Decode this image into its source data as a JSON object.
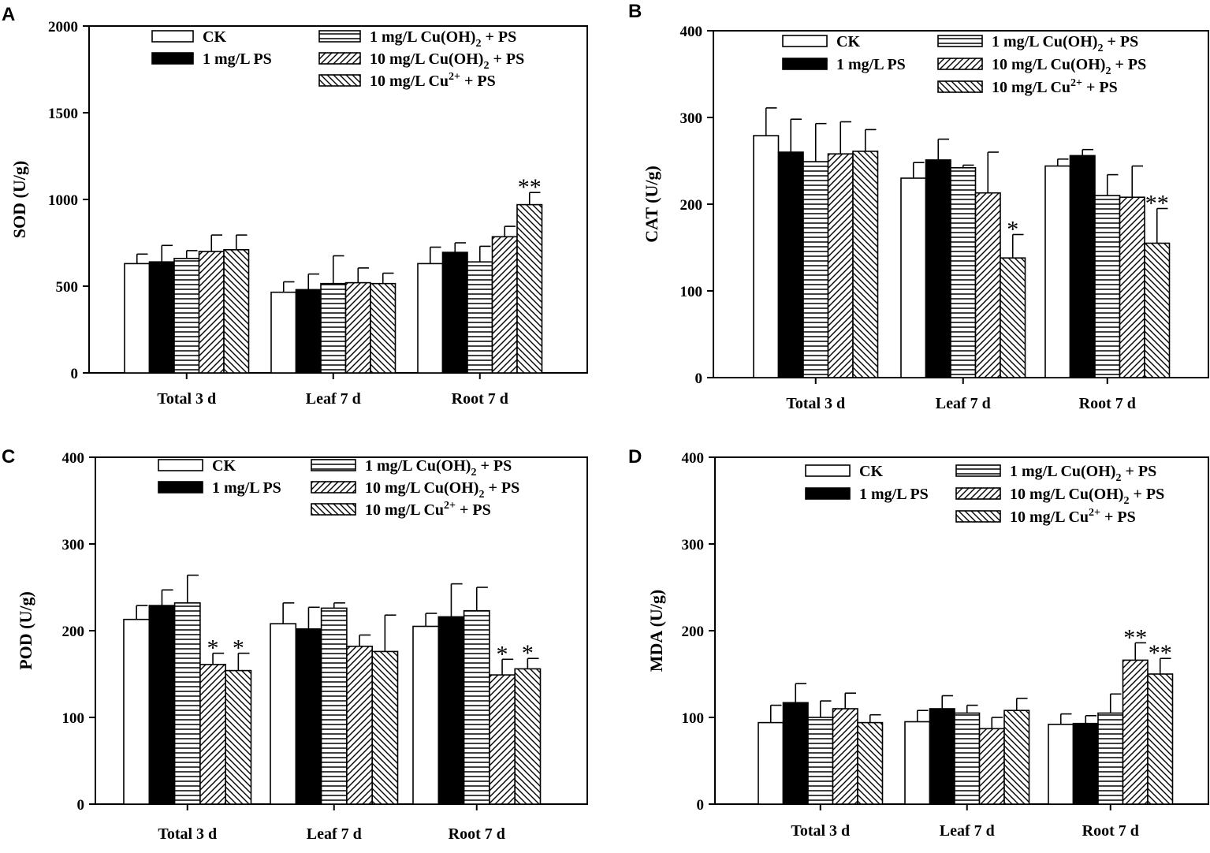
{
  "chart_data": [
    {
      "panel": "A",
      "type": "bar",
      "ylabel": "SOD (U/g)",
      "ylim": [
        0,
        2000
      ],
      "yticks": [
        0,
        500,
        1000,
        1500,
        2000
      ],
      "categories": [
        "Total 3 d",
        "Leaf 7 d",
        "Root 7 d"
      ],
      "series": [
        {
          "name": "CK",
          "values": [
            630,
            465,
            630
          ],
          "errors": [
            55,
            60,
            95
          ],
          "sig": [
            "",
            "",
            ""
          ]
        },
        {
          "name": "1 mg/L PS",
          "values": [
            640,
            480,
            695
          ],
          "errors": [
            95,
            90,
            55
          ],
          "sig": [
            "",
            "",
            ""
          ]
        },
        {
          "name": "1 mg/L Cu(OH)2 + PS",
          "values": [
            660,
            515,
            640
          ],
          "errors": [
            45,
            160,
            90
          ],
          "sig": [
            "",
            "",
            ""
          ]
        },
        {
          "name": "10 mg/L Cu(OH)2 + PS",
          "values": [
            700,
            520,
            785
          ],
          "errors": [
            95,
            85,
            60
          ],
          "sig": [
            "",
            "",
            ""
          ]
        },
        {
          "name": "10 mg/L Cu2+ + PS",
          "values": [
            710,
            515,
            970
          ],
          "errors": [
            85,
            60,
            70
          ],
          "sig": [
            "",
            "",
            "**"
          ]
        }
      ]
    },
    {
      "panel": "B",
      "type": "bar",
      "ylabel": "CAT (U/g)",
      "ylim": [
        0,
        400
      ],
      "yticks": [
        0,
        100,
        200,
        300,
        400
      ],
      "categories": [
        "Total 3 d",
        "Leaf 7 d",
        "Root 7 d"
      ],
      "series": [
        {
          "name": "CK",
          "values": [
            279,
            230,
            244
          ],
          "errors": [
            32,
            18,
            8
          ],
          "sig": [
            "",
            "",
            ""
          ]
        },
        {
          "name": "1 mg/L PS",
          "values": [
            260,
            251,
            256
          ],
          "errors": [
            38,
            24,
            7
          ],
          "sig": [
            "",
            "",
            ""
          ]
        },
        {
          "name": "1 mg/L Cu(OH)2 + PS",
          "values": [
            249,
            242,
            210
          ],
          "errors": [
            44,
            3,
            24
          ],
          "sig": [
            "",
            "",
            ""
          ]
        },
        {
          "name": "10 mg/L Cu(OH)2 + PS",
          "values": [
            258,
            213,
            208
          ],
          "errors": [
            37,
            47,
            36
          ],
          "sig": [
            "",
            "",
            ""
          ]
        },
        {
          "name": "10 mg/L Cu2+ + PS",
          "values": [
            261,
            138,
            155
          ],
          "errors": [
            25,
            27,
            40
          ],
          "sig": [
            "",
            "*",
            "**"
          ]
        }
      ]
    },
    {
      "panel": "C",
      "type": "bar",
      "ylabel": "POD (U/g)",
      "ylim": [
        0,
        400
      ],
      "yticks": [
        0,
        100,
        200,
        300,
        400
      ],
      "categories": [
        "Total 3 d",
        "Leaf 7 d",
        "Root 7 d"
      ],
      "series": [
        {
          "name": "CK",
          "values": [
            213,
            208,
            205
          ],
          "errors": [
            16,
            24,
            15
          ],
          "sig": [
            "",
            "",
            ""
          ]
        },
        {
          "name": "1 mg/L PS",
          "values": [
            229,
            202,
            216
          ],
          "errors": [
            18,
            25,
            38
          ],
          "sig": [
            "",
            "",
            ""
          ]
        },
        {
          "name": "1 mg/L Cu(OH)2 + PS",
          "values": [
            232,
            226,
            223
          ],
          "errors": [
            32,
            6,
            27
          ],
          "sig": [
            "",
            "",
            ""
          ]
        },
        {
          "name": "10 mg/L Cu(OH)2 + PS",
          "values": [
            161,
            182,
            149
          ],
          "errors": [
            13,
            13,
            18
          ],
          "sig": [
            "*",
            "",
            "*"
          ]
        },
        {
          "name": "10 mg/L Cu2+ + PS",
          "values": [
            154,
            176,
            156
          ],
          "errors": [
            20,
            42,
            12
          ],
          "sig": [
            "*",
            "",
            "*"
          ]
        }
      ]
    },
    {
      "panel": "D",
      "type": "bar",
      "ylabel": "MDA (U/g)",
      "ylim": [
        0,
        400
      ],
      "yticks": [
        0,
        100,
        200,
        300,
        400
      ],
      "categories": [
        "Total 3 d",
        "Leaf 7 d",
        "Root 7 d"
      ],
      "series": [
        {
          "name": "CK",
          "values": [
            94,
            95,
            92
          ],
          "errors": [
            20,
            13,
            12
          ],
          "sig": [
            "",
            "",
            ""
          ]
        },
        {
          "name": "1 mg/L PS",
          "values": [
            117,
            110,
            93
          ],
          "errors": [
            22,
            15,
            9
          ],
          "sig": [
            "",
            "",
            ""
          ]
        },
        {
          "name": "1 mg/L Cu(OH)2 + PS",
          "values": [
            100,
            105,
            105
          ],
          "errors": [
            19,
            9,
            22
          ],
          "sig": [
            "",
            "",
            ""
          ]
        },
        {
          "name": "10 mg/L Cu(OH)2 + PS",
          "values": [
            110,
            87,
            166
          ],
          "errors": [
            18,
            13,
            20
          ],
          "sig": [
            "",
            "",
            "**"
          ]
        },
        {
          "name": "10 mg/L Cu2+ + PS",
          "values": [
            94,
            108,
            150
          ],
          "errors": [
            9,
            14,
            18
          ],
          "sig": [
            "",
            "",
            "**"
          ]
        }
      ]
    }
  ],
  "legend": [
    {
      "pre": "CK",
      "sub": "",
      "mid": "",
      "sup": "",
      "post": ""
    },
    {
      "pre": "1 mg/L PS",
      "sub": "",
      "mid": "",
      "sup": "",
      "post": ""
    },
    {
      "pre": "1 mg/L Cu(OH)",
      "sub": "2",
      "mid": " + PS",
      "sup": "",
      "post": ""
    },
    {
      "pre": "10 mg/L Cu(OH)",
      "sub": "2",
      "mid": " + PS",
      "sup": "",
      "post": ""
    },
    {
      "pre": "10 mg/L Cu",
      "sub": "",
      "mid": "",
      "sup": "2+",
      "post": " + PS"
    }
  ]
}
